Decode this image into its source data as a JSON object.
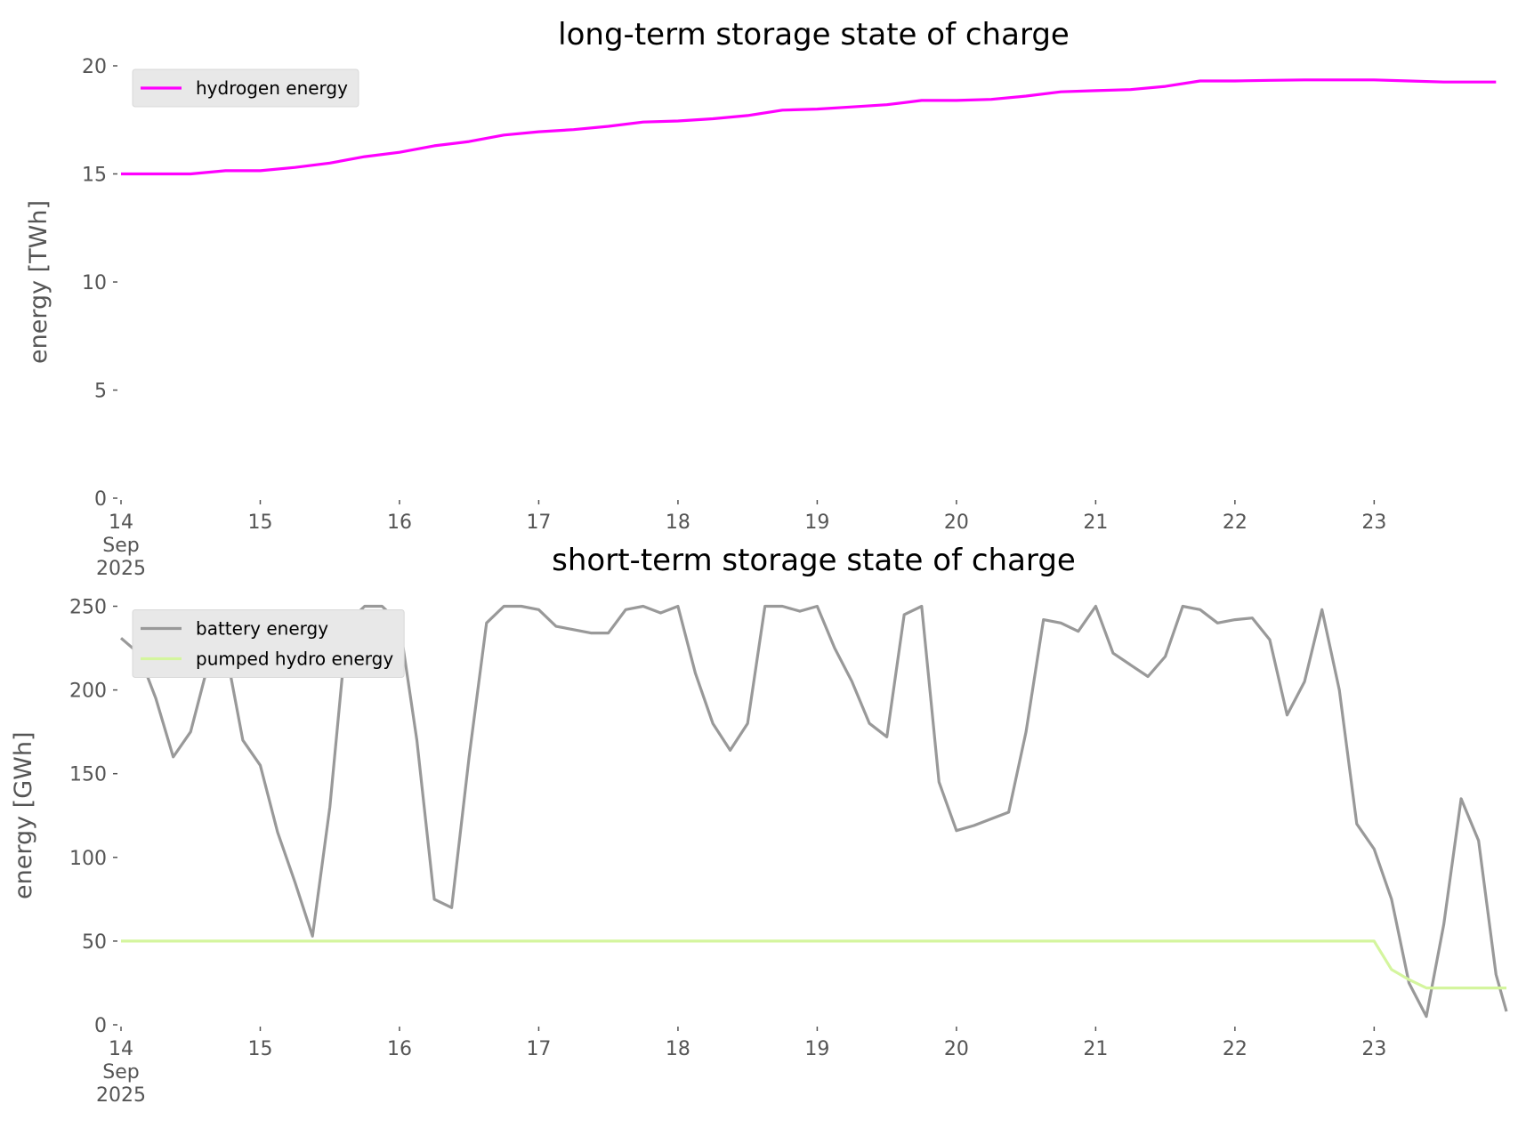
{
  "chart_data": [
    {
      "type": "line",
      "title": "long-term storage state of charge",
      "ylabel": "energy [TWh]",
      "x": [
        14,
        14.25,
        14.5,
        14.75,
        15,
        15.25,
        15.5,
        15.75,
        16,
        16.25,
        16.5,
        16.75,
        17,
        17.25,
        17.5,
        17.75,
        18,
        18.25,
        18.5,
        18.75,
        19,
        19.25,
        19.5,
        19.75,
        20,
        20.25,
        20.5,
        20.75,
        21,
        21.25,
        21.5,
        21.75,
        22,
        22.25,
        22.5,
        22.75,
        23,
        23.25,
        23.5,
        23.75,
        23.875
      ],
      "series": [
        {
          "name": "hydrogen energy",
          "color": "#ff00ff",
          "values": [
            15,
            15,
            15,
            15.15,
            15.15,
            15.3,
            15.5,
            15.8,
            16,
            16.3,
            16.5,
            16.8,
            16.95,
            17.05,
            17.2,
            17.4,
            17.45,
            17.55,
            17.7,
            17.95,
            18,
            18.1,
            18.2,
            18.4,
            18.4,
            18.45,
            18.6,
            18.8,
            18.85,
            18.9,
            19.05,
            19.3,
            19.3,
            19.33,
            19.35,
            19.35,
            19.35,
            19.3,
            19.25,
            19.25,
            19.25
          ]
        }
      ],
      "xlim": [
        14,
        23.95
      ],
      "xticks": [
        {
          "value": 14,
          "label": "14\nSep\n2025"
        },
        15,
        16,
        17,
        18,
        19,
        20,
        21,
        22,
        23
      ],
      "ylim": [
        0,
        20
      ],
      "yticks": [
        0,
        5,
        10,
        15,
        20
      ],
      "grid": false,
      "legend": "upper left"
    },
    {
      "type": "line",
      "title": "short-term storage state of charge",
      "ylabel": "energy [GWh]",
      "x": [
        14,
        14.125,
        14.25,
        14.375,
        14.5,
        14.625,
        14.75,
        14.875,
        15,
        15.125,
        15.25,
        15.375,
        15.5,
        15.625,
        15.75,
        15.875,
        16,
        16.125,
        16.25,
        16.375,
        16.5,
        16.625,
        16.75,
        16.875,
        17,
        17.125,
        17.25,
        17.375,
        17.5,
        17.625,
        17.75,
        17.875,
        18,
        18.125,
        18.25,
        18.375,
        18.5,
        18.625,
        18.75,
        18.875,
        19,
        19.125,
        19.25,
        19.375,
        19.5,
        19.625,
        19.75,
        19.875,
        20,
        20.125,
        20.25,
        20.375,
        20.5,
        20.625,
        20.75,
        20.875,
        21,
        21.125,
        21.25,
        21.375,
        21.5,
        21.625,
        21.75,
        21.875,
        22,
        22.125,
        22.25,
        22.375,
        22.5,
        22.625,
        22.75,
        22.875,
        23,
        23.125,
        23.25,
        23.375,
        23.5,
        23.625,
        23.75,
        23.875,
        23.95
      ],
      "series": [
        {
          "name": "battery energy",
          "color": "#999999",
          "values": [
            231,
            222,
            195,
            160,
            175,
            215,
            225,
            170,
            155,
            115,
            85,
            53,
            130,
            240,
            250,
            250,
            240,
            170,
            75,
            70,
            160,
            240,
            250,
            250,
            248,
            238,
            236,
            234,
            234,
            248,
            250,
            246,
            250,
            210,
            180,
            164,
            180,
            250,
            250,
            247,
            250,
            225,
            205,
            180,
            172,
            245,
            250,
            145,
            116,
            119,
            123,
            127,
            175,
            242,
            240,
            235,
            250,
            222,
            215,
            208,
            220,
            250,
            248,
            240,
            242,
            243,
            230,
            185,
            205,
            248,
            200,
            120,
            105,
            75,
            25,
            5,
            60,
            135,
            110,
            30,
            8
          ]
        },
        {
          "name": "pumped hydro energy",
          "color": "#d4f59e",
          "values": [
            50,
            50,
            50,
            50,
            50,
            50,
            50,
            50,
            50,
            50,
            50,
            50,
            50,
            50,
            50,
            50,
            50,
            50,
            50,
            50,
            50,
            50,
            50,
            50,
            50,
            50,
            50,
            50,
            50,
            50,
            50,
            50,
            50,
            50,
            50,
            50,
            50,
            50,
            50,
            50,
            50,
            50,
            50,
            50,
            50,
            50,
            50,
            50,
            50,
            50,
            50,
            50,
            50,
            50,
            50,
            50,
            50,
            50,
            50,
            50,
            50,
            50,
            50,
            50,
            50,
            50,
            50,
            50,
            50,
            50,
            50,
            50,
            50,
            33,
            27,
            22,
            22,
            22,
            22,
            22,
            22
          ]
        }
      ],
      "xlim": [
        14,
        23.95
      ],
      "xticks": [
        {
          "value": 14,
          "label": "14\nSep\n2025"
        },
        15,
        16,
        17,
        18,
        19,
        20,
        21,
        22,
        23
      ],
      "ylim": [
        0,
        250
      ],
      "yticks": [
        0,
        50,
        100,
        150,
        200,
        250
      ],
      "grid": false,
      "legend": "upper left"
    }
  ]
}
